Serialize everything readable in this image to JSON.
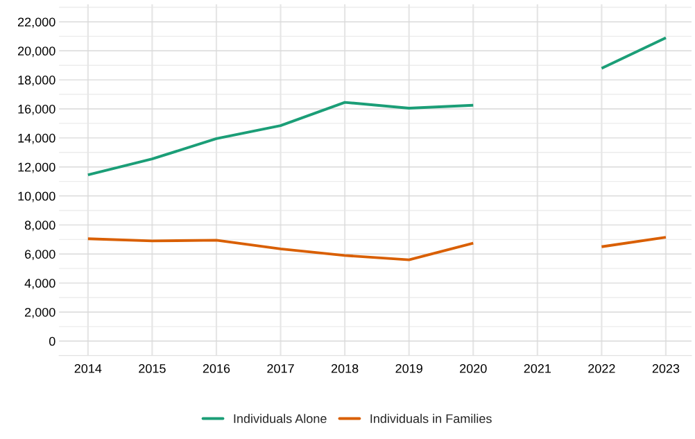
{
  "chart_data": {
    "type": "line",
    "categories": [
      "2014",
      "2015",
      "2016",
      "2017",
      "2018",
      "2019",
      "2020",
      "2021",
      "2022",
      "2023"
    ],
    "series": [
      {
        "name": "Individuals Alone",
        "color": "#1b9e77",
        "values": [
          11450,
          12550,
          13950,
          14850,
          16450,
          16050,
          16250,
          null,
          18800,
          20900
        ]
      },
      {
        "name": "Individuals in Families",
        "color": "#d95f02",
        "values": [
          7050,
          6900,
          6950,
          6350,
          5900,
          5600,
          6750,
          null,
          6500,
          7150
        ]
      }
    ],
    "ylim": [
      -1000,
      23200
    ],
    "yticks": [
      {
        "value": 0,
        "label": "0"
      },
      {
        "value": 2000,
        "label": "2,000"
      },
      {
        "value": 4000,
        "label": "4,000"
      },
      {
        "value": 6000,
        "label": "6,000"
      },
      {
        "value": 8000,
        "label": "8,000"
      },
      {
        "value": 10000,
        "label": "10,000"
      },
      {
        "value": 12000,
        "label": "12,000"
      },
      {
        "value": 14000,
        "label": "14,000"
      },
      {
        "value": 16000,
        "label": "16,000"
      },
      {
        "value": 18000,
        "label": "18,000"
      },
      {
        "value": 20000,
        "label": "20,000"
      },
      {
        "value": 22000,
        "label": "22,000"
      }
    ],
    "grid": true,
    "legend": "bottom",
    "marker": "none",
    "line_style": "solid"
  }
}
